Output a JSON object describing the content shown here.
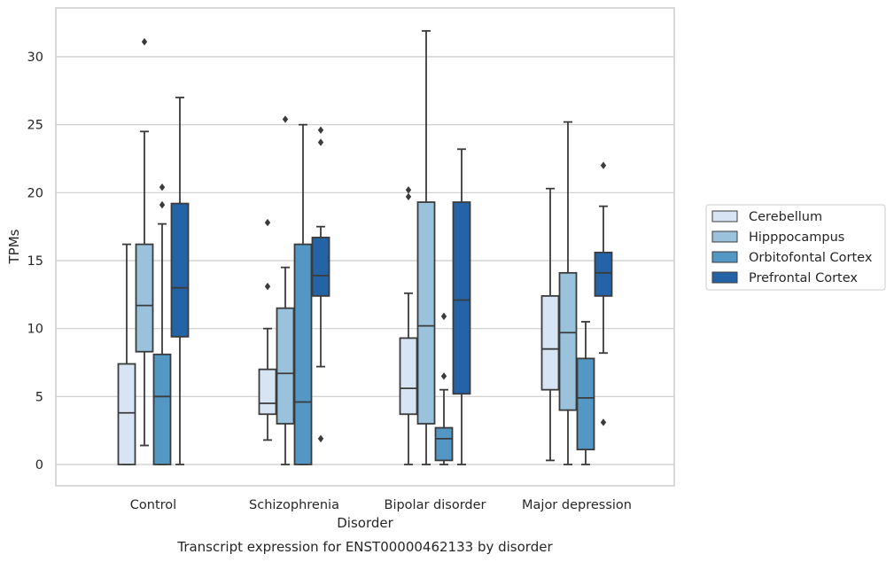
{
  "chart_data": {
    "type": "box",
    "title": "Transcript expression for ENST00000462133 by disorder",
    "xlabel": "Disorder",
    "ylabel": "TPMs",
    "ylim": [
      -1.5,
      33.5
    ],
    "yticks": [
      0,
      5,
      10,
      15,
      20,
      25,
      30
    ],
    "grid": "horizontal",
    "legend_position": "right",
    "categories": [
      "Control",
      "Schizophrenia",
      "Bipolar disorder",
      "Major depression"
    ],
    "series": [
      {
        "name": "Cerebellum",
        "color": "#d6e4f3",
        "boxes": [
          {
            "whislo": 0,
            "q1": 0,
            "med": 3.8,
            "q3": 7.4,
            "whishi": 16.2,
            "fliers": []
          },
          {
            "whislo": 1.8,
            "q1": 3.7,
            "med": 4.5,
            "q3": 7.0,
            "whishi": 10.0,
            "fliers": [
              13.1,
              17.8
            ]
          },
          {
            "whislo": 0,
            "q1": 3.7,
            "med": 5.6,
            "q3": 9.3,
            "whishi": 12.6,
            "fliers": [
              19.7,
              20.2
            ]
          },
          {
            "whislo": 0.3,
            "q1": 5.5,
            "med": 8.5,
            "q3": 12.4,
            "whishi": 20.3,
            "fliers": []
          }
        ]
      },
      {
        "name": "Hipppocampus",
        "color": "#9ac2dc",
        "boxes": [
          {
            "whislo": 1.4,
            "q1": 8.3,
            "med": 11.7,
            "q3": 16.2,
            "whishi": 24.5,
            "fliers": [
              31.1
            ]
          },
          {
            "whislo": 0,
            "q1": 3.0,
            "med": 6.7,
            "q3": 11.5,
            "whishi": 14.5,
            "fliers": [
              25.4
            ]
          },
          {
            "whislo": 0,
            "q1": 3.0,
            "med": 10.2,
            "q3": 19.3,
            "whishi": 31.9,
            "fliers": []
          },
          {
            "whislo": 0,
            "q1": 4.0,
            "med": 9.7,
            "q3": 14.1,
            "whishi": 25.2,
            "fliers": []
          }
        ]
      },
      {
        "name": "Orbitofontal Cortex",
        "color": "#5397c4",
        "boxes": [
          {
            "whislo": 0,
            "q1": 0,
            "med": 5.0,
            "q3": 8.1,
            "whishi": 17.7,
            "fliers": [
              19.1,
              20.4
            ]
          },
          {
            "whislo": 0,
            "q1": 0,
            "med": 4.6,
            "q3": 16.2,
            "whishi": 25.0,
            "fliers": []
          },
          {
            "whislo": 0,
            "q1": 0.3,
            "med": 1.9,
            "q3": 2.7,
            "whishi": 5.5,
            "fliers": [
              6.5,
              10.9
            ]
          },
          {
            "whislo": 0,
            "q1": 1.1,
            "med": 4.9,
            "q3": 7.8,
            "whishi": 10.5,
            "fliers": []
          }
        ]
      },
      {
        "name": "Prefrontal Cortex",
        "color": "#2464a6",
        "boxes": [
          {
            "whislo": 0,
            "q1": 9.4,
            "med": 13.0,
            "q3": 19.2,
            "whishi": 27.0,
            "fliers": []
          },
          {
            "whislo": 7.2,
            "q1": 12.4,
            "med": 13.9,
            "q3": 16.7,
            "whishi": 17.5,
            "fliers": [
              1.9,
              23.7,
              24.6
            ]
          },
          {
            "whislo": 0,
            "q1": 5.2,
            "med": 12.1,
            "q3": 19.3,
            "whishi": 23.2,
            "fliers": []
          },
          {
            "whislo": 8.2,
            "q1": 12.4,
            "med": 14.1,
            "q3": 15.6,
            "whishi": 19.0,
            "fliers": [
              3.1,
              22.0
            ]
          }
        ]
      }
    ]
  }
}
